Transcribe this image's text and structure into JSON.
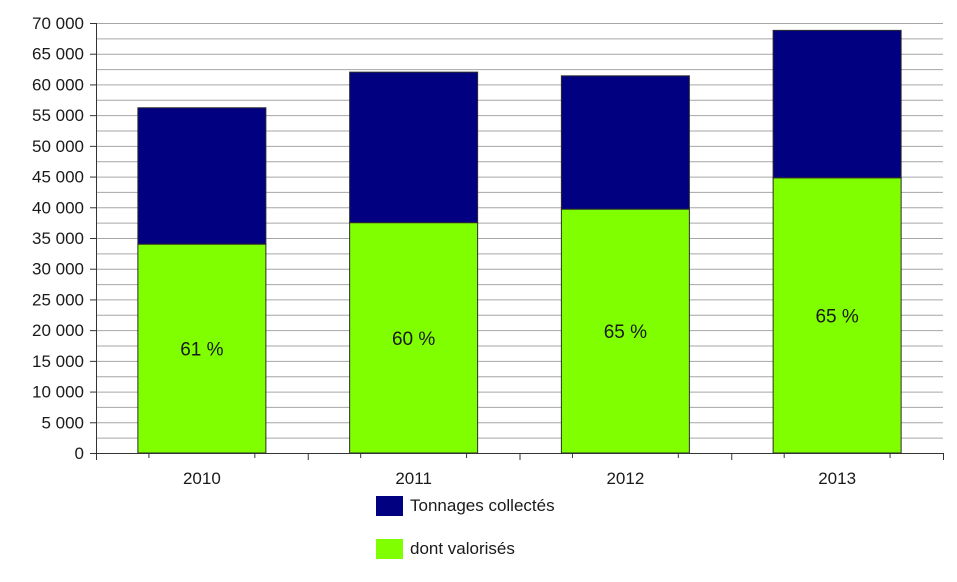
{
  "chart_data": {
    "type": "bar",
    "stacked": true,
    "categories": [
      "2010",
      "2011",
      "2012",
      "2013"
    ],
    "series": [
      {
        "name": "dont valorisés",
        "color": "#7fff00",
        "values": [
          34000,
          37500,
          39700,
          44800
        ]
      },
      {
        "name": "Tonnages collectés",
        "color": "#000080",
        "values": [
          22200,
          24500,
          21700,
          24000
        ]
      }
    ],
    "totals": [
      56200,
      62000,
      61400,
      68800
    ],
    "data_labels": [
      "61 %",
      "60 %",
      "65 %",
      "65 %"
    ],
    "ylim": [
      0,
      70000
    ],
    "ytick_step": 5000,
    "ytick_labels": [
      "0",
      "5 000",
      "10 000",
      "15 000",
      "20 000",
      "25 000",
      "30 000",
      "35 000",
      "40 000",
      "45 000",
      "50 000",
      "55 000",
      "60 000",
      "65 000",
      "70 000"
    ],
    "grid": true,
    "legend": {
      "placement": "bottom",
      "items": [
        {
          "label": "Tonnages collectés",
          "color": "#000080"
        },
        {
          "label": "dont valorisés",
          "color": "#7fff00"
        }
      ]
    }
  }
}
